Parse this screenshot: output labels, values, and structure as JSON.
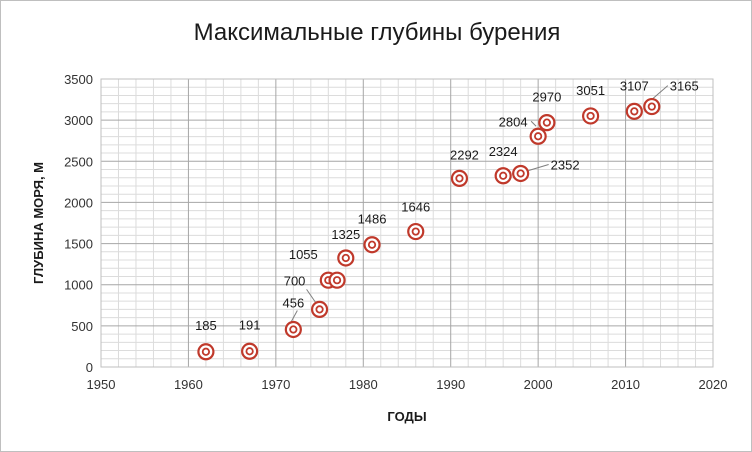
{
  "chart_data": {
    "type": "scatter",
    "title": "Максимальные глубины бурения",
    "xlabel": "ГОДЫ",
    "ylabel": "ГЛУБИНА МОРЯ, М",
    "xlim": [
      1950,
      2020
    ],
    "ylim": [
      0,
      3500
    ],
    "x_ticks": [
      "1950",
      "1960",
      "1970",
      "1980",
      "1990",
      "2000",
      "2010",
      "2020"
    ],
    "y_ticks": [
      "0",
      "500",
      "1000",
      "1500",
      "2000",
      "2500",
      "3000",
      "3500"
    ],
    "grid": true,
    "marker_color": "#c0392b",
    "points": [
      {
        "x": 1962,
        "y": 185,
        "label": "185"
      },
      {
        "x": 1967,
        "y": 191,
        "label": "191"
      },
      {
        "x": 1972,
        "y": 456,
        "label": "456"
      },
      {
        "x": 1975,
        "y": 700,
        "label": "700"
      },
      {
        "x": 1976,
        "y": 1055,
        "label": "1055"
      },
      {
        "x": 1977,
        "y": 1055,
        "label": ""
      },
      {
        "x": 1978,
        "y": 1325,
        "label": "1325"
      },
      {
        "x": 1981,
        "y": 1486,
        "label": "1486"
      },
      {
        "x": 1986,
        "y": 1646,
        "label": "1646"
      },
      {
        "x": 1991,
        "y": 2292,
        "label": "2292"
      },
      {
        "x": 1996,
        "y": 2324,
        "label": "2324"
      },
      {
        "x": 1998,
        "y": 2352,
        "label": "2352"
      },
      {
        "x": 2000,
        "y": 2804,
        "label": "2804"
      },
      {
        "x": 2001,
        "y": 2970,
        "label": "2970"
      },
      {
        "x": 2006,
        "y": 3051,
        "label": "3051"
      },
      {
        "x": 2011,
        "y": 3107,
        "label": "3107"
      },
      {
        "x": 2013,
        "y": 3165,
        "label": "3165"
      }
    ]
  }
}
